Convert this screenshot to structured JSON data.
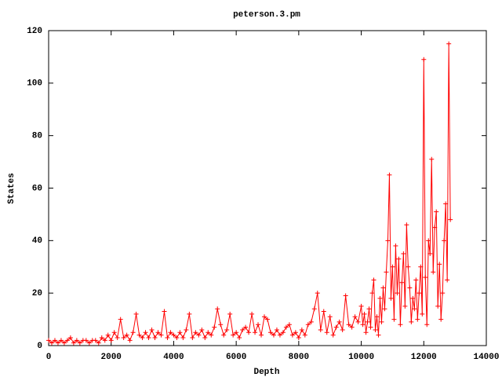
{
  "chart_data": {
    "type": "line",
    "title": "peterson.3.pm",
    "x_label": "Depth",
    "y_label": "States",
    "xlim": [
      0,
      14000
    ],
    "xticks": [
      0,
      2000,
      4000,
      6000,
      8000,
      10000,
      12000,
      14000
    ],
    "ylim": [
      0,
      120
    ],
    "yticks": [
      0,
      20,
      40,
      60,
      80,
      100,
      120
    ],
    "color": "#ff0000",
    "marker": "+",
    "x": [
      0,
      100,
      200,
      300,
      400,
      500,
      600,
      700,
      800,
      900,
      1000,
      1100,
      1200,
      1300,
      1400,
      1500,
      1600,
      1700,
      1800,
      1900,
      2000,
      2100,
      2200,
      2300,
      2400,
      2500,
      2600,
      2700,
      2800,
      2900,
      3000,
      3100,
      3200,
      3300,
      3400,
      3500,
      3600,
      3700,
      3800,
      3900,
      4000,
      4100,
      4200,
      4300,
      4400,
      4500,
      4600,
      4700,
      4800,
      4900,
      5000,
      5100,
      5200,
      5300,
      5400,
      5500,
      5600,
      5700,
      5800,
      5900,
      6000,
      6100,
      6200,
      6300,
      6400,
      6500,
      6600,
      6700,
      6800,
      6900,
      7000,
      7100,
      7200,
      7300,
      7400,
      7500,
      7600,
      7700,
      7800,
      7900,
      8000,
      8100,
      8200,
      8300,
      8400,
      8500,
      8600,
      8700,
      8800,
      8900,
      9000,
      9100,
      9200,
      9300,
      9400,
      9500,
      9600,
      9700,
      9800,
      9900,
      10000,
      10050,
      10100,
      10150,
      10200,
      10250,
      10300,
      10350,
      10400,
      10450,
      10500,
      10550,
      10600,
      10650,
      10700,
      10750,
      10800,
      10850,
      10900,
      10950,
      11000,
      11050,
      11100,
      11150,
      11200,
      11250,
      11300,
      11350,
      11400,
      11450,
      11500,
      11550,
      11600,
      11650,
      11700,
      11750,
      11800,
      11850,
      11900,
      11950,
      12000,
      12050,
      12100,
      12150,
      12200,
      12250,
      12300,
      12350,
      12400,
      12450,
      12500,
      12550,
      12600,
      12650,
      12700,
      12750,
      12800,
      12850
    ],
    "values": [
      2,
      1,
      2,
      1,
      2,
      1,
      2,
      3,
      1,
      2,
      1,
      2,
      2,
      1,
      2,
      2,
      1,
      3,
      2,
      4,
      2,
      5,
      3,
      10,
      3,
      4,
      2,
      5,
      12,
      4,
      3,
      5,
      3,
      6,
      3,
      5,
      4,
      13,
      3,
      5,
      4,
      3,
      5,
      3,
      6,
      12,
      3,
      5,
      4,
      6,
      3,
      5,
      4,
      7,
      14,
      8,
      4,
      6,
      12,
      4,
      5,
      3,
      6,
      7,
      5,
      12,
      5,
      8,
      4,
      11,
      10,
      5,
      4,
      6,
      4,
      5,
      7,
      8,
      4,
      5,
      3,
      6,
      4,
      8,
      9,
      14,
      20,
      6,
      13,
      5,
      11,
      4,
      7,
      9,
      6,
      19,
      8,
      7,
      11,
      9,
      15,
      8,
      12,
      5,
      9,
      14,
      7,
      20,
      25,
      6,
      11,
      4,
      18,
      9,
      22,
      14,
      28,
      40,
      65,
      18,
      30,
      10,
      38,
      20,
      33,
      8,
      24,
      35,
      15,
      46,
      30,
      22,
      9,
      18,
      14,
      25,
      10,
      20,
      30,
      12,
      109,
      26,
      8,
      40,
      35,
      71,
      28,
      45,
      51,
      15,
      31,
      10,
      20,
      40,
      54,
      25,
      115,
      48
    ]
  }
}
